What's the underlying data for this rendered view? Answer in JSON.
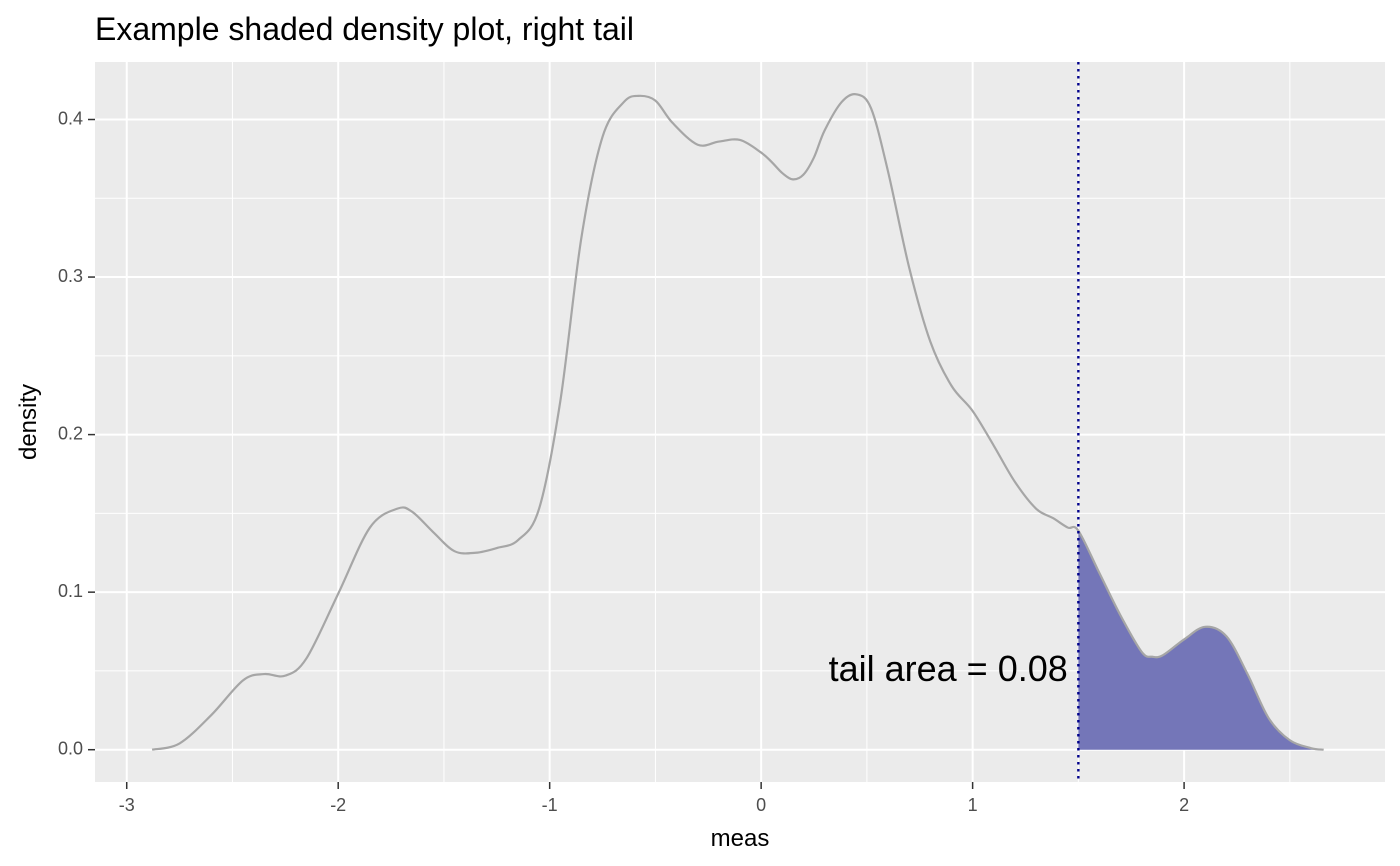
{
  "chart_data": {
    "type": "area",
    "title": "Example shaded density plot, right tail",
    "xlabel": "meas",
    "ylabel": "density",
    "xlim": [
      -3.15,
      2.95
    ],
    "ylim": [
      -0.0205,
      0.4365
    ],
    "x_ticks": [
      -3,
      -2,
      -1,
      0,
      1,
      2
    ],
    "x_tick_labels": [
      "-3",
      "-2",
      "-1",
      "0",
      "1",
      "2"
    ],
    "y_ticks": [
      0.0,
      0.1,
      0.2,
      0.3,
      0.4
    ],
    "y_tick_labels": [
      "0.0",
      "0.1",
      "0.2",
      "0.3",
      "0.4"
    ],
    "grid": true,
    "series": [
      {
        "name": "density",
        "color": "#a6a6a6",
        "x": [
          -2.88,
          -2.75,
          -2.6,
          -2.45,
          -2.35,
          -2.25,
          -2.15,
          -2.0,
          -1.85,
          -1.72,
          -1.65,
          -1.55,
          -1.45,
          -1.35,
          -1.25,
          -1.15,
          -1.05,
          -0.95,
          -0.85,
          -0.75,
          -0.65,
          -0.58,
          -0.5,
          -0.42,
          -0.3,
          -0.2,
          -0.1,
          0.0,
          0.05,
          0.1,
          0.15,
          0.2,
          0.25,
          0.3,
          0.38,
          0.45,
          0.52,
          0.6,
          0.7,
          0.8,
          0.9,
          1.0,
          1.1,
          1.2,
          1.3,
          1.38,
          1.45,
          1.5,
          1.6,
          1.7,
          1.8,
          1.85,
          1.9,
          2.0,
          2.1,
          2.2,
          2.3,
          2.4,
          2.5,
          2.6,
          2.66
        ],
        "y": [
          0.0,
          0.004,
          0.022,
          0.044,
          0.048,
          0.047,
          0.058,
          0.099,
          0.141,
          0.153,
          0.151,
          0.138,
          0.126,
          0.125,
          0.128,
          0.133,
          0.153,
          0.221,
          0.325,
          0.389,
          0.411,
          0.415,
          0.412,
          0.398,
          0.384,
          0.386,
          0.387,
          0.379,
          0.373,
          0.366,
          0.362,
          0.365,
          0.376,
          0.393,
          0.411,
          0.416,
          0.407,
          0.367,
          0.306,
          0.259,
          0.231,
          0.215,
          0.193,
          0.17,
          0.153,
          0.147,
          0.141,
          0.139,
          0.112,
          0.085,
          0.062,
          0.059,
          0.06,
          0.07,
          0.078,
          0.072,
          0.048,
          0.02,
          0.006,
          0.001,
          0.0
        ]
      }
    ],
    "threshold": 1.5,
    "threshold_color": "#00008b",
    "shade_color": "#7476b8",
    "annotation": {
      "text": "tail area =  0.08",
      "x": 1.45,
      "y": 0.0495
    }
  }
}
